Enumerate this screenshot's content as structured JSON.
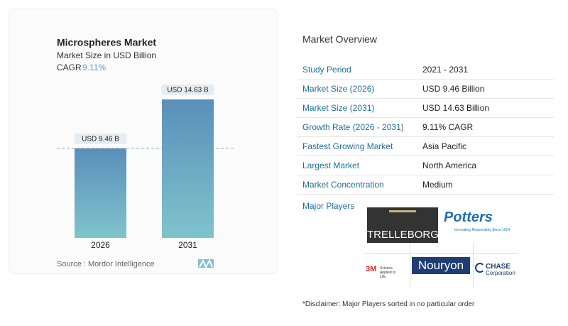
{
  "chart_data": {
    "type": "bar",
    "title": "Microspheres Market",
    "subtitle": "Market Size in USD Billion",
    "cagr_label": "CAGR",
    "cagr": "9.11%",
    "categories": [
      "2026",
      "2031"
    ],
    "values": [
      9.46,
      14.63
    ],
    "value_labels": [
      "USD 9.46 B",
      "USD 14.63 B"
    ],
    "color": [
      "#5a8fba",
      "#7fc4cc"
    ],
    "source": "Source : Mordor Intelligence"
  },
  "overview": {
    "title": "Market Overview",
    "rows": [
      [
        "Study Period",
        "2021 - 2031"
      ],
      [
        "Market Size (2026)",
        "USD 9.46 Billion"
      ],
      [
        "Market Size (2031)",
        "USD 14.63 Billion"
      ],
      [
        "Growth Rate (2026 - 2031)",
        "9.11% CAGR"
      ],
      [
        "Fastest Growing Market",
        "Asia Pacific"
      ],
      [
        "Largest Market",
        "North America"
      ],
      [
        "Market Concentration",
        "Medium"
      ]
    ],
    "players_label": "Major Players",
    "players": [
      {
        "name": "TRELLEBORG"
      },
      {
        "name": "Potters",
        "tagline": "Innovating Responsibly Since 1914"
      },
      {
        "name": "3M",
        "tagline": "Science. Applied to Life."
      },
      {
        "name": "Nouryon"
      },
      {
        "name": "CHASE",
        "tagline": "Corporation"
      }
    ],
    "disclaimer": "*Disclaimer: Major Players sorted in no particular order"
  }
}
